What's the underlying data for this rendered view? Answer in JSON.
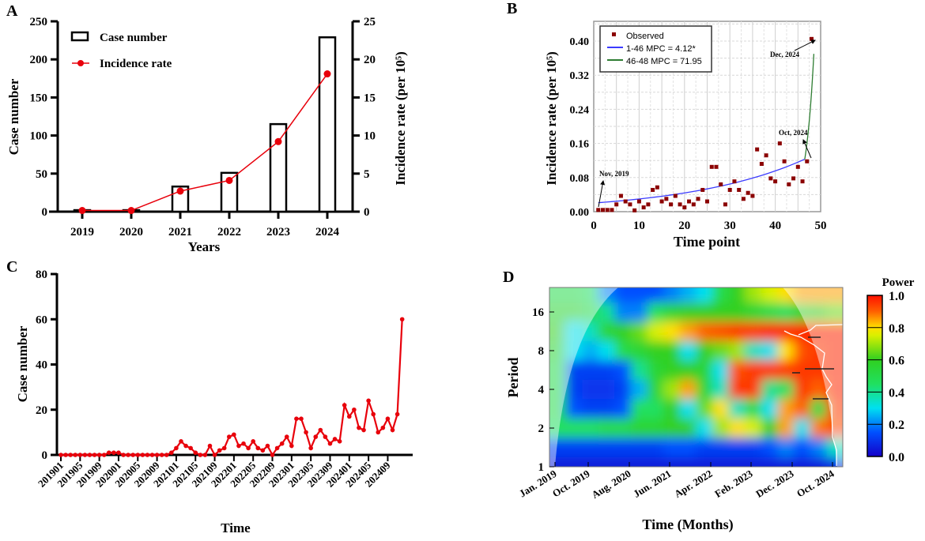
{
  "panel_labels": [
    "A",
    "B",
    "C",
    "D"
  ],
  "chart_data": [
    {
      "id": "A",
      "type": "bar+line",
      "categories": [
        "2019",
        "2020",
        "2021",
        "2022",
        "2023",
        "2024"
      ],
      "series": [
        {
          "name": "Case number",
          "type": "bar",
          "axis": "left",
          "values": [
            2,
            2,
            33,
            51,
            115,
            229
          ]
        },
        {
          "name": "Incidence rate",
          "type": "line",
          "axis": "right",
          "color": "#e8000b",
          "values": [
            0.15,
            0.15,
            2.7,
            4.1,
            9.2,
            18.1
          ]
        }
      ],
      "xlabel": "Years",
      "ylabel": "Case number",
      "ylabel_right": "Incidence rate (per 10⁵)",
      "ylim": [
        0,
        250
      ],
      "yticks": [
        0,
        50,
        100,
        150,
        200,
        250
      ],
      "ylim_right": [
        0,
        25
      ],
      "yticks_right": [
        0,
        5,
        10,
        15,
        20,
        25
      ],
      "legend": "top-left"
    },
    {
      "id": "B",
      "type": "scatter+line",
      "observed_label": "Observed",
      "observed_color": "#8b0000",
      "observed": [
        0.004,
        0.004,
        0.004,
        0.004,
        0.017,
        0.037,
        0.024,
        0.017,
        0.003,
        0.024,
        0.01,
        0.017,
        0.051,
        0.057,
        0.024,
        0.03,
        0.017,
        0.037,
        0.017,
        0.01,
        0.024,
        0.017,
        0.03,
        0.051,
        0.024,
        0.105,
        0.105,
        0.064,
        0.017,
        0.051,
        0.071,
        0.051,
        0.03,
        0.044,
        0.037,
        0.146,
        0.112,
        0.132,
        0.078,
        0.071,
        0.16,
        0.118,
        0.064,
        0.078,
        0.105,
        0.071,
        0.118,
        0.405
      ],
      "fit_segments": [
        {
          "label": "1-46 MPC  =  4.12*",
          "color": "#3b3bff",
          "from": 1,
          "to": 46.5,
          "start_value": 0.021,
          "end_value": 0.123
        },
        {
          "label": "46-48 MPC  = 71.95",
          "color": "#2e7d32",
          "from": 46.5,
          "to": 48.5,
          "start_value": 0.123,
          "end_value": 0.37
        }
      ],
      "annotations": [
        "Nov, 2019",
        "Oct, 2024",
        "Dec, 2024"
      ],
      "xlabel": "Time point",
      "ylabel": "Incidence rate (per 10⁵)",
      "xlim": [
        0,
        50
      ],
      "xticks": [
        0,
        10,
        20,
        30,
        40,
        50
      ],
      "ylim": [
        0,
        0.44
      ],
      "yticks": [
        "0.00",
        "0.08",
        "0.16",
        "0.24",
        "0.32",
        "0.40"
      ],
      "grid": true,
      "legend": "top-left"
    },
    {
      "id": "C",
      "type": "line",
      "color": "#e8000b",
      "xtick_labels": [
        "201901",
        "201905",
        "201909",
        "202001",
        "202005",
        "202009",
        "202101",
        "202105",
        "202109",
        "202201",
        "202205",
        "202209",
        "202301",
        "202305",
        "202309",
        "202401",
        "202405",
        "202409"
      ],
      "values": [
        0,
        0,
        0,
        0,
        0,
        0,
        0,
        0,
        0,
        0,
        1,
        1,
        1,
        0,
        0,
        0,
        0,
        0,
        0,
        0,
        0,
        0,
        0,
        1,
        3,
        6,
        4,
        3,
        1,
        0,
        0,
        4,
        0,
        2,
        3,
        8,
        9,
        4,
        5,
        3,
        6,
        3,
        2,
        4,
        0,
        3,
        5,
        8,
        4,
        16,
        16,
        10,
        3,
        8,
        11,
        8,
        5,
        7,
        6,
        22,
        17,
        20,
        12,
        11,
        24,
        18,
        10,
        12,
        16,
        11,
        18,
        60
      ],
      "xlabel": "Time",
      "ylabel": "Case number",
      "ylim": [
        0,
        80
      ],
      "yticks": [
        0,
        20,
        40,
        60,
        80
      ]
    },
    {
      "id": "D",
      "type": "heatmap",
      "title_colorbar": "Power",
      "xlabel": "Time (Months)",
      "ylabel": "Period",
      "xtick_labels": [
        "Jan. 2019",
        "Oct. 2019",
        "Aug. 2020",
        "Jun. 2021",
        "Apr. 2022",
        "Feb. 2023",
        "Dec. 2023",
        "Oct. 2024"
      ],
      "yticks": [
        1,
        2,
        4,
        8,
        16
      ],
      "colorbar_ticks": [
        "0.0",
        "0.2",
        "0.4",
        "0.6",
        "0.8",
        "1.0"
      ],
      "row_periods": [
        1,
        1.41,
        2,
        2.83,
        4,
        5.66,
        8,
        11.3,
        16,
        22.6
      ],
      "power_grid": [
        [
          0.05,
          0.05,
          0.05,
          0.05,
          0.05,
          0.05,
          0.05,
          0.05,
          0.05,
          0.05,
          0.05,
          0.05,
          0.05,
          0.05,
          0.05,
          0.05,
          0.05,
          0.08
        ],
        [
          0.12,
          0.12,
          0.12,
          0.12,
          0.12,
          0.12,
          0.12,
          0.15,
          0.15,
          0.12,
          0.12,
          0.12,
          0.12,
          0.15,
          0.2,
          0.15,
          0.2,
          0.35
        ],
        [
          0.45,
          0.45,
          0.45,
          0.5,
          0.5,
          0.55,
          0.55,
          0.6,
          0.6,
          0.3,
          0.7,
          0.8,
          0.75,
          0.6,
          0.85,
          0.3,
          0.88,
          0.92
        ],
        [
          0.5,
          0.15,
          0.12,
          0.12,
          0.15,
          0.45,
          0.45,
          0.6,
          0.3,
          0.65,
          0.8,
          0.35,
          0.5,
          0.3,
          0.85,
          0.9,
          0.5,
          0.95
        ],
        [
          0.5,
          0.12,
          0.1,
          0.1,
          0.12,
          0.25,
          0.55,
          0.7,
          0.85,
          0.55,
          0.35,
          0.95,
          0.95,
          0.4,
          0.45,
          0.95,
          0.9,
          0.97
        ],
        [
          0.5,
          0.12,
          0.12,
          0.12,
          0.15,
          0.4,
          0.55,
          0.6,
          0.6,
          0.55,
          0.3,
          0.92,
          0.95,
          0.95,
          0.95,
          0.95,
          0.95,
          0.97
        ],
        [
          0.55,
          0.3,
          0.25,
          0.3,
          0.5,
          0.55,
          0.6,
          0.6,
          0.3,
          0.6,
          0.65,
          0.7,
          0.35,
          0.3,
          0.8,
          0.92,
          0.95,
          0.97
        ],
        [
          0.6,
          0.3,
          0.35,
          0.55,
          0.6,
          0.65,
          0.75,
          0.8,
          0.85,
          0.9,
          0.92,
          0.95,
          0.95,
          0.97,
          0.97,
          0.97,
          0.97,
          0.97
        ],
        [
          0.55,
          0.55,
          0.5,
          0.4,
          0.2,
          0.2,
          0.45,
          0.55,
          0.6,
          0.6,
          0.6,
          0.6,
          0.55,
          0.5,
          0.45,
          0.55,
          0.6,
          0.65
        ],
        [
          0.5,
          0.5,
          0.45,
          0.2,
          0.15,
          0.15,
          0.15,
          0.2,
          0.25,
          0.3,
          0.5,
          0.6,
          0.7,
          0.75,
          0.8,
          0.85,
          0.85,
          0.85
        ]
      ]
    }
  ]
}
